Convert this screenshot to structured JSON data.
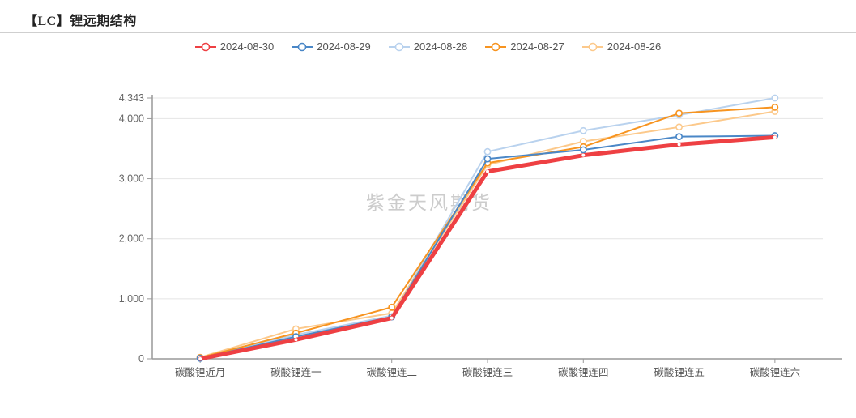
{
  "title": "【LC】锂远期结构",
  "watermark": "紫金天风期货",
  "chart_data": {
    "type": "line",
    "title": "",
    "xlabel": "",
    "ylabel": "",
    "grid": true,
    "legend_position": "top",
    "categories": [
      "碳酸锂近月",
      "碳酸锂连一",
      "碳酸锂连二",
      "碳酸锂连三",
      "碳酸锂连四",
      "碳酸锂连五",
      "碳酸锂连六"
    ],
    "series": [
      {
        "name": "2024-08-30",
        "color": "#ee4043",
        "line_width": 5,
        "values": [
          0,
          320,
          680,
          3120,
          3390,
          3570,
          3690
        ]
      },
      {
        "name": "2024-08-29",
        "color": "#4a87c7",
        "line_width": 2,
        "values": [
          10,
          370,
          700,
          3330,
          3480,
          3700,
          3715
        ]
      },
      {
        "name": "2024-08-28",
        "color": "#b9d2ee",
        "line_width": 2,
        "values": [
          15,
          400,
          720,
          3450,
          3800,
          4060,
          4343
        ]
      },
      {
        "name": "2024-08-27",
        "color": "#f79420",
        "line_width": 2,
        "values": [
          20,
          430,
          860,
          3260,
          3530,
          4090,
          4190
        ]
      },
      {
        "name": "2024-08-26",
        "color": "#fcc98b",
        "line_width": 2,
        "values": [
          25,
          500,
          760,
          3230,
          3620,
          3860,
          4120
        ]
      }
    ],
    "ylim": [
      0,
      4343
    ],
    "yticks": [
      {
        "value": 0,
        "label": "0"
      },
      {
        "value": 1000,
        "label": "1,000"
      },
      {
        "value": 2000,
        "label": "2,000"
      },
      {
        "value": 3000,
        "label": "3,000"
      },
      {
        "value": 4000,
        "label": "4,000"
      },
      {
        "value": 4343,
        "label": "4,343"
      }
    ]
  },
  "colors": {
    "axis": "#999999",
    "grid": "#e4e4e4",
    "tick_label": "#666666",
    "x_label": "#555555",
    "legend_text": "#555555",
    "watermark": "#cccccc",
    "title_text": "#222222",
    "divider": "#cfcfcf"
  }
}
